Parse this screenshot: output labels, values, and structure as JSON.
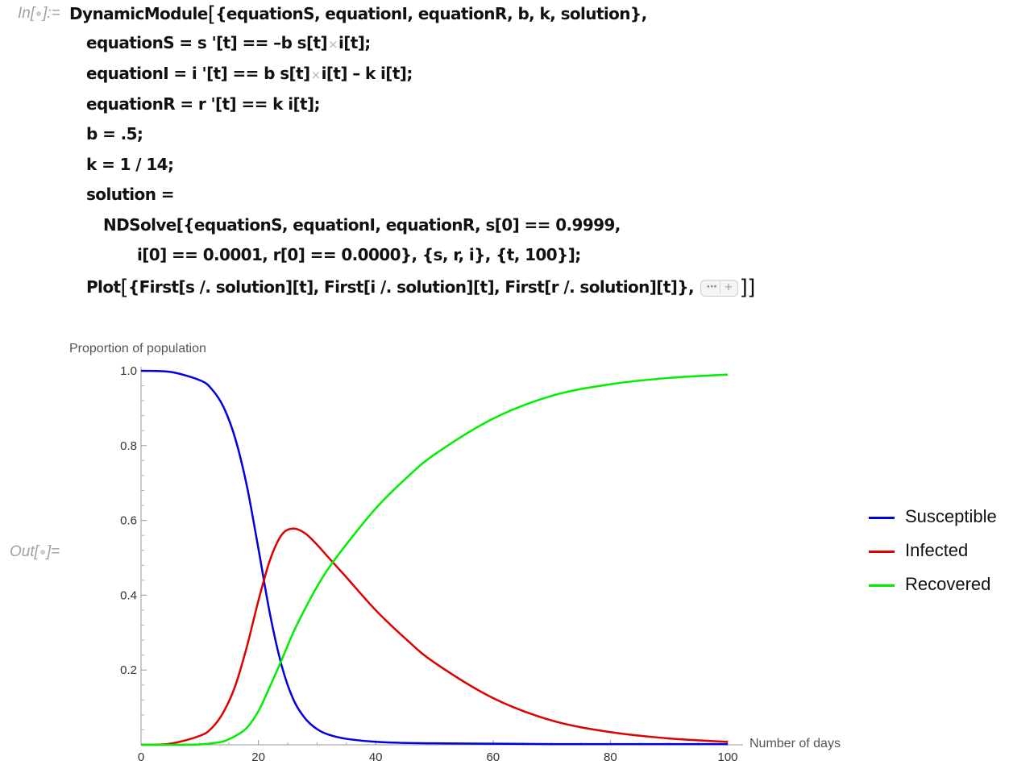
{
  "notebook": {
    "in_label": "In[",
    "in_label_end": "]:=",
    "out_label": "Out[",
    "out_label_end": "]="
  },
  "code": {
    "line1_a": "DynamicModule",
    "line1_bracket": "[",
    "line1_b": "{equationS, equationI, equationR, b, k, solution},",
    "line2_a": "equationS = s '[t] == –b s[t]",
    "line2_b": "i[t];",
    "line3_a": "equationI = i '[t] == b s[t]",
    "line3_b": "i[t] – k i[t];",
    "line4": "equationR = r '[t] == k i[t];",
    "line5": "b = .5;",
    "line6": "k = 1 / 14;",
    "line7": "solution =",
    "line8": "NDSolve[{equationS, equationI, equationR, s[0] == 0.9999,",
    "line9": "i[0] == 0.0001, r[0] == 0.0000}, {s, r, i}, {t, 100}];",
    "line10_a": "Plot",
    "line10_bracket": "[",
    "line10_b": "{First[s /. solution][t], First[i /. solution][t], First[r /. solution][t]},",
    "line10_close": "]]",
    "times_glyph": "×",
    "ellipsis": "···",
    "plus": "+"
  },
  "chart_data": {
    "type": "line",
    "ylabel": "Proportion of population",
    "xlabel": "Number of days",
    "xlim": [
      0,
      100
    ],
    "ylim": [
      0,
      1.0
    ],
    "x_ticks": [
      0,
      20,
      40,
      60,
      80,
      100
    ],
    "x_tick_labels": [
      "0",
      "20",
      "40",
      "60",
      "80",
      "100"
    ],
    "y_ticks": [
      0.2,
      0.4,
      0.6,
      0.8,
      1.0
    ],
    "y_tick_labels": [
      "0.2",
      "0.4",
      "0.6",
      "0.8",
      "1.0"
    ],
    "x": [
      0,
      5,
      10,
      12,
      14,
      16,
      18,
      20,
      22,
      24,
      26,
      28,
      30,
      32,
      35,
      40,
      45,
      50,
      60,
      70,
      80,
      90,
      100
    ],
    "series": [
      {
        "name": "Susceptible",
        "color": "#0000dd",
        "values": [
          0.9999,
          0.997,
          0.975,
          0.952,
          0.905,
          0.822,
          0.695,
          0.525,
          0.348,
          0.21,
          0.12,
          0.07,
          0.042,
          0.027,
          0.016,
          0.008,
          0.005,
          0.004,
          0.003,
          0.002,
          0.002,
          0.002,
          0.002
        ]
      },
      {
        "name": "Infected",
        "color": "#dd0000",
        "values": [
          0.0001,
          0.003,
          0.024,
          0.044,
          0.086,
          0.155,
          0.26,
          0.385,
          0.495,
          0.562,
          0.578,
          0.565,
          0.535,
          0.5,
          0.448,
          0.36,
          0.285,
          0.22,
          0.125,
          0.065,
          0.034,
          0.017,
          0.008
        ]
      },
      {
        "name": "Recovered",
        "color": "#00ee00",
        "values": [
          0.0,
          0.0,
          0.001,
          0.004,
          0.009,
          0.023,
          0.045,
          0.09,
          0.157,
          0.228,
          0.302,
          0.365,
          0.423,
          0.473,
          0.536,
          0.632,
          0.71,
          0.776,
          0.872,
          0.933,
          0.964,
          0.981,
          0.99
        ]
      }
    ]
  }
}
